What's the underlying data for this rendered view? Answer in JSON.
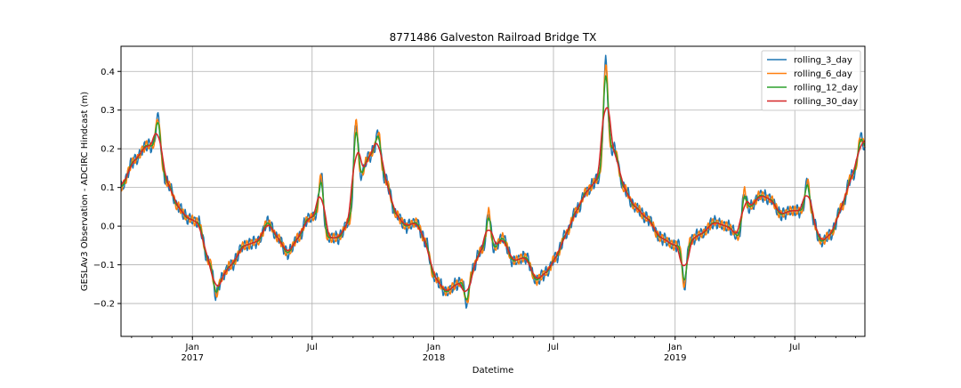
{
  "chart_data": {
    "type": "line",
    "title": "8771486 Galveston Railroad Bridge TX",
    "xlabel": "Datetime",
    "ylabel": "GESLAv3 Observation - ADCIRC Hindcast (m)",
    "x_range": [
      "2016-09-15",
      "2019-10-15"
    ],
    "ylim": [
      -0.285,
      0.465
    ],
    "y_ticks": [
      -0.2,
      -0.1,
      0.0,
      0.1,
      0.2,
      0.3,
      0.4
    ],
    "y_tick_labels": [
      "−0.2",
      "−0.1",
      "0.0",
      "0.1",
      "0.2",
      "0.3",
      "0.4"
    ],
    "x_ticks": [
      {
        "date": "2017-01-01",
        "label": "Jan",
        "sublabel": "2017"
      },
      {
        "date": "2017-07-01",
        "label": "Jul",
        "sublabel": ""
      },
      {
        "date": "2018-01-01",
        "label": "Jan",
        "sublabel": "2018"
      },
      {
        "date": "2018-07-01",
        "label": "Jul",
        "sublabel": ""
      },
      {
        "date": "2019-01-01",
        "label": "Jan",
        "sublabel": "2019"
      },
      {
        "date": "2019-07-01",
        "label": "Jul",
        "sublabel": ""
      }
    ],
    "grid": true,
    "legend_position": "top-right",
    "series": [
      {
        "name": "rolling_3_day",
        "color": "#1f77b4",
        "window_days": 3,
        "noise": 0.035
      },
      {
        "name": "rolling_6_day",
        "color": "#ff7f0e",
        "window_days": 6,
        "noise": 0.025
      },
      {
        "name": "rolling_12_day",
        "color": "#2ca02c",
        "window_days": 12,
        "noise": 0.013
      },
      {
        "name": "rolling_30_day",
        "color": "#d62728",
        "window_days": 30,
        "noise": 0.0
      }
    ],
    "trend_points": [
      [
        "2016-09-15",
        0.1
      ],
      [
        "2016-10-05",
        0.17
      ],
      [
        "2016-10-25",
        0.21
      ],
      [
        "2016-11-08",
        0.2
      ],
      [
        "2016-11-25",
        0.11
      ],
      [
        "2016-12-10",
        0.05
      ],
      [
        "2016-12-25",
        0.02
      ],
      [
        "2017-01-10",
        0.01
      ],
      [
        "2017-01-25",
        -0.09
      ],
      [
        "2017-02-10",
        -0.14
      ],
      [
        "2017-03-01",
        -0.1
      ],
      [
        "2017-03-20",
        -0.05
      ],
      [
        "2017-04-10",
        -0.04
      ],
      [
        "2017-04-25",
        0.01
      ],
      [
        "2017-05-10",
        -0.03
      ],
      [
        "2017-05-25",
        -0.07
      ],
      [
        "2017-06-10",
        -0.03
      ],
      [
        "2017-06-25",
        0.02
      ],
      [
        "2017-07-10",
        0.03
      ],
      [
        "2017-07-25",
        -0.03
      ],
      [
        "2017-08-10",
        -0.03
      ],
      [
        "2017-08-25",
        0.01
      ],
      [
        "2017-09-10",
        0.12
      ],
      [
        "2017-09-25",
        0.18
      ],
      [
        "2017-10-05",
        0.2
      ],
      [
        "2017-10-20",
        0.12
      ],
      [
        "2017-11-05",
        0.03
      ],
      [
        "2017-11-20",
        0.0
      ],
      [
        "2017-12-05",
        0.01
      ],
      [
        "2017-12-20",
        -0.04
      ],
      [
        "2018-01-01",
        -0.13
      ],
      [
        "2018-01-20",
        -0.17
      ],
      [
        "2018-02-05",
        -0.15
      ],
      [
        "2018-02-25",
        -0.12
      ],
      [
        "2018-03-15",
        -0.06
      ],
      [
        "2018-04-01",
        -0.06
      ],
      [
        "2018-04-15",
        -0.03
      ],
      [
        "2018-05-01",
        -0.09
      ],
      [
        "2018-05-20",
        -0.08
      ],
      [
        "2018-06-05",
        -0.14
      ],
      [
        "2018-06-20",
        -0.12
      ],
      [
        "2018-07-05",
        -0.08
      ],
      [
        "2018-07-20",
        -0.02
      ],
      [
        "2018-08-05",
        0.04
      ],
      [
        "2018-08-20",
        0.09
      ],
      [
        "2018-09-05",
        0.12
      ],
      [
        "2018-09-20",
        0.19
      ],
      [
        "2018-10-01",
        0.2
      ],
      [
        "2018-10-15",
        0.1
      ],
      [
        "2018-11-01",
        0.05
      ],
      [
        "2018-11-20",
        0.02
      ],
      [
        "2018-12-10",
        -0.03
      ],
      [
        "2019-01-01",
        -0.05
      ],
      [
        "2019-01-20",
        -0.04
      ],
      [
        "2019-02-10",
        -0.02
      ],
      [
        "2019-03-01",
        0.01
      ],
      [
        "2019-03-20",
        0.0
      ],
      [
        "2019-04-10",
        -0.03
      ],
      [
        "2019-04-25",
        0.05
      ],
      [
        "2019-05-10",
        0.08
      ],
      [
        "2019-05-25",
        0.07
      ],
      [
        "2019-06-10",
        0.03
      ],
      [
        "2019-06-25",
        0.04
      ],
      [
        "2019-07-10",
        0.04
      ],
      [
        "2019-07-25",
        0.03
      ],
      [
        "2019-08-10",
        -0.04
      ],
      [
        "2019-08-25",
        -0.02
      ],
      [
        "2019-09-10",
        0.05
      ],
      [
        "2019-09-25",
        0.13
      ],
      [
        "2019-10-15",
        0.2
      ]
    ],
    "spikes": [
      [
        "2016-11-10",
        0.09
      ],
      [
        "2017-02-05",
        -0.05
      ],
      [
        "2017-07-15",
        0.12
      ],
      [
        "2017-09-05",
        0.18
      ],
      [
        "2017-10-10",
        0.06
      ],
      [
        "2018-02-20",
        -0.08
      ],
      [
        "2018-03-25",
        0.1
      ],
      [
        "2018-09-18",
        0.25
      ],
      [
        "2019-01-15",
        -0.12
      ],
      [
        "2019-04-15",
        0.1
      ],
      [
        "2019-07-20",
        0.09
      ],
      [
        "2019-10-08",
        0.05
      ]
    ]
  }
}
